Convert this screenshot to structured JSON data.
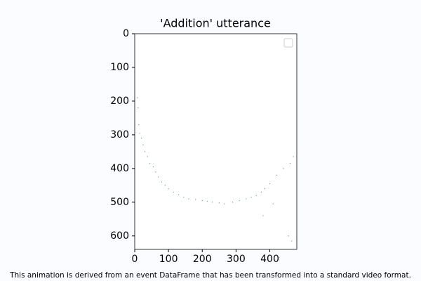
{
  "chart_data": {
    "type": "scatter",
    "title": "'Addition' utterance",
    "caption": "This animation is derived from an event DataFrame that has been transformed into a standard video format.",
    "x": [
      8,
      10,
      12,
      15,
      20,
      25,
      30,
      38,
      45,
      55,
      62,
      70,
      80,
      90,
      100,
      115,
      130,
      145,
      160,
      180,
      200,
      215,
      230,
      250,
      265,
      290,
      310,
      330,
      345,
      360,
      375,
      385,
      400,
      420,
      440,
      460,
      470,
      380,
      455,
      465,
      410
    ],
    "y": [
      190,
      220,
      270,
      295,
      310,
      330,
      350,
      365,
      385,
      395,
      410,
      425,
      440,
      450,
      460,
      470,
      478,
      485,
      490,
      492,
      495,
      497,
      500,
      502,
      505,
      500,
      495,
      490,
      485,
      480,
      470,
      460,
      445,
      420,
      400,
      385,
      365,
      540,
      600,
      615,
      505
    ],
    "color": "#1f77b4",
    "xlim": [
      0,
      480
    ],
    "ylim": [
      640,
      0
    ],
    "xticks": [
      0,
      100,
      200,
      300,
      400
    ],
    "yticks": [
      0,
      100,
      200,
      300,
      400,
      500,
      600
    ],
    "legend": "upper right"
  }
}
